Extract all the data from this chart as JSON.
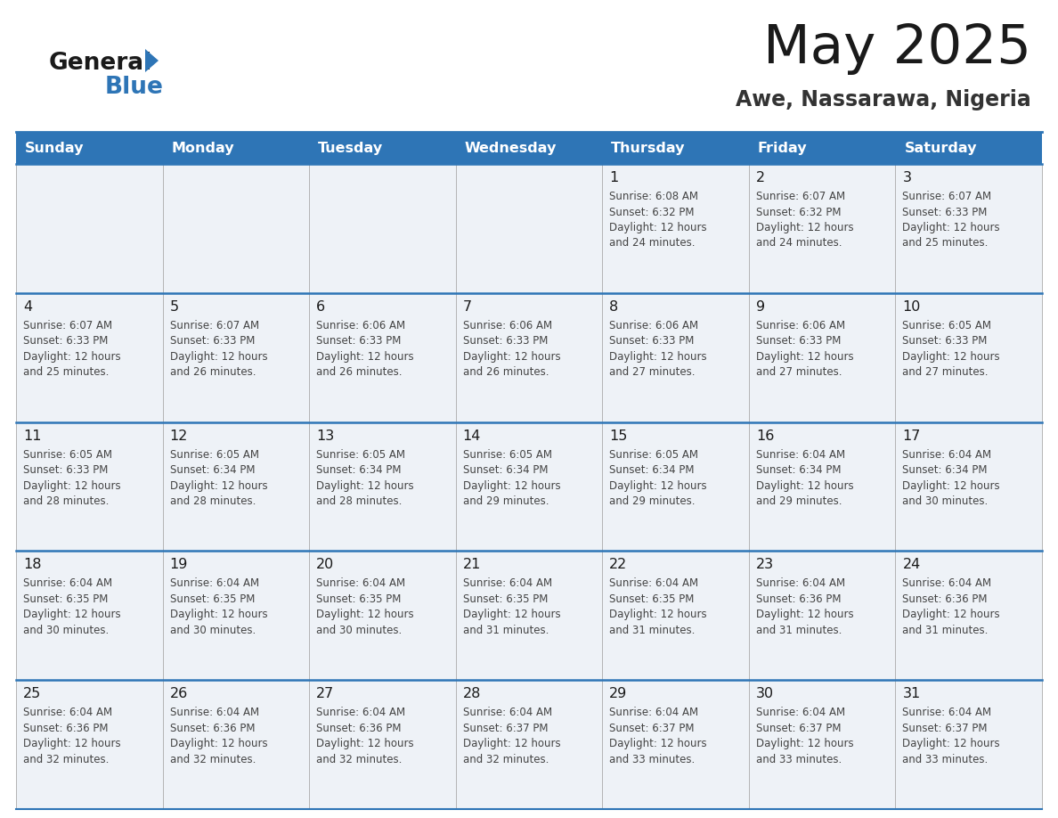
{
  "title": "May 2025",
  "subtitle": "Awe, Nassarawa, Nigeria",
  "days_of_week": [
    "Sunday",
    "Monday",
    "Tuesday",
    "Wednesday",
    "Thursday",
    "Friday",
    "Saturday"
  ],
  "header_bg": "#2e75b6",
  "header_text": "#ffffff",
  "cell_bg_odd": "#eef2f7",
  "cell_bg_even": "#ffffff",
  "grid_line_color": "#2e75b6",
  "day_num_color": "#1a1a1a",
  "cell_text_color": "#444444",
  "title_color": "#1a1a1a",
  "subtitle_color": "#333333",
  "logo_general_color": "#1a1a1a",
  "logo_blue_color": "#2e75b6",
  "logo_triangle_color": "#2e75b6",
  "weeks": [
    [
      {
        "day": null,
        "info": null
      },
      {
        "day": null,
        "info": null
      },
      {
        "day": null,
        "info": null
      },
      {
        "day": null,
        "info": null
      },
      {
        "day": 1,
        "info": "Sunrise: 6:08 AM\nSunset: 6:32 PM\nDaylight: 12 hours\nand 24 minutes."
      },
      {
        "day": 2,
        "info": "Sunrise: 6:07 AM\nSunset: 6:32 PM\nDaylight: 12 hours\nand 24 minutes."
      },
      {
        "day": 3,
        "info": "Sunrise: 6:07 AM\nSunset: 6:33 PM\nDaylight: 12 hours\nand 25 minutes."
      }
    ],
    [
      {
        "day": 4,
        "info": "Sunrise: 6:07 AM\nSunset: 6:33 PM\nDaylight: 12 hours\nand 25 minutes."
      },
      {
        "day": 5,
        "info": "Sunrise: 6:07 AM\nSunset: 6:33 PM\nDaylight: 12 hours\nand 26 minutes."
      },
      {
        "day": 6,
        "info": "Sunrise: 6:06 AM\nSunset: 6:33 PM\nDaylight: 12 hours\nand 26 minutes."
      },
      {
        "day": 7,
        "info": "Sunrise: 6:06 AM\nSunset: 6:33 PM\nDaylight: 12 hours\nand 26 minutes."
      },
      {
        "day": 8,
        "info": "Sunrise: 6:06 AM\nSunset: 6:33 PM\nDaylight: 12 hours\nand 27 minutes."
      },
      {
        "day": 9,
        "info": "Sunrise: 6:06 AM\nSunset: 6:33 PM\nDaylight: 12 hours\nand 27 minutes."
      },
      {
        "day": 10,
        "info": "Sunrise: 6:05 AM\nSunset: 6:33 PM\nDaylight: 12 hours\nand 27 minutes."
      }
    ],
    [
      {
        "day": 11,
        "info": "Sunrise: 6:05 AM\nSunset: 6:33 PM\nDaylight: 12 hours\nand 28 minutes."
      },
      {
        "day": 12,
        "info": "Sunrise: 6:05 AM\nSunset: 6:34 PM\nDaylight: 12 hours\nand 28 minutes."
      },
      {
        "day": 13,
        "info": "Sunrise: 6:05 AM\nSunset: 6:34 PM\nDaylight: 12 hours\nand 28 minutes."
      },
      {
        "day": 14,
        "info": "Sunrise: 6:05 AM\nSunset: 6:34 PM\nDaylight: 12 hours\nand 29 minutes."
      },
      {
        "day": 15,
        "info": "Sunrise: 6:05 AM\nSunset: 6:34 PM\nDaylight: 12 hours\nand 29 minutes."
      },
      {
        "day": 16,
        "info": "Sunrise: 6:04 AM\nSunset: 6:34 PM\nDaylight: 12 hours\nand 29 minutes."
      },
      {
        "day": 17,
        "info": "Sunrise: 6:04 AM\nSunset: 6:34 PM\nDaylight: 12 hours\nand 30 minutes."
      }
    ],
    [
      {
        "day": 18,
        "info": "Sunrise: 6:04 AM\nSunset: 6:35 PM\nDaylight: 12 hours\nand 30 minutes."
      },
      {
        "day": 19,
        "info": "Sunrise: 6:04 AM\nSunset: 6:35 PM\nDaylight: 12 hours\nand 30 minutes."
      },
      {
        "day": 20,
        "info": "Sunrise: 6:04 AM\nSunset: 6:35 PM\nDaylight: 12 hours\nand 30 minutes."
      },
      {
        "day": 21,
        "info": "Sunrise: 6:04 AM\nSunset: 6:35 PM\nDaylight: 12 hours\nand 31 minutes."
      },
      {
        "day": 22,
        "info": "Sunrise: 6:04 AM\nSunset: 6:35 PM\nDaylight: 12 hours\nand 31 minutes."
      },
      {
        "day": 23,
        "info": "Sunrise: 6:04 AM\nSunset: 6:36 PM\nDaylight: 12 hours\nand 31 minutes."
      },
      {
        "day": 24,
        "info": "Sunrise: 6:04 AM\nSunset: 6:36 PM\nDaylight: 12 hours\nand 31 minutes."
      }
    ],
    [
      {
        "day": 25,
        "info": "Sunrise: 6:04 AM\nSunset: 6:36 PM\nDaylight: 12 hours\nand 32 minutes."
      },
      {
        "day": 26,
        "info": "Sunrise: 6:04 AM\nSunset: 6:36 PM\nDaylight: 12 hours\nand 32 minutes."
      },
      {
        "day": 27,
        "info": "Sunrise: 6:04 AM\nSunset: 6:36 PM\nDaylight: 12 hours\nand 32 minutes."
      },
      {
        "day": 28,
        "info": "Sunrise: 6:04 AM\nSunset: 6:37 PM\nDaylight: 12 hours\nand 32 minutes."
      },
      {
        "day": 29,
        "info": "Sunrise: 6:04 AM\nSunset: 6:37 PM\nDaylight: 12 hours\nand 33 minutes."
      },
      {
        "day": 30,
        "info": "Sunrise: 6:04 AM\nSunset: 6:37 PM\nDaylight: 12 hours\nand 33 minutes."
      },
      {
        "day": 31,
        "info": "Sunrise: 6:04 AM\nSunset: 6:37 PM\nDaylight: 12 hours\nand 33 minutes."
      }
    ]
  ]
}
